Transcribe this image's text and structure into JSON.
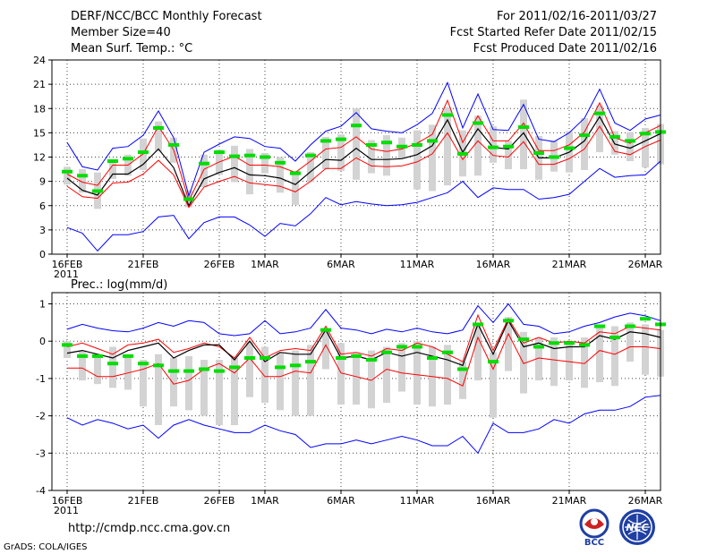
{
  "header": {
    "title": "DERF/NCC/BCC Monthly Forecast",
    "member_size": "Member Size=40",
    "variable": "Mean Surf. Temp.: °C",
    "period": "For 2011/02/16-2011/03/27",
    "fcst_started": "Fcst Started Refer Date 2011/02/15",
    "fcst_produced": "Fcst Produced Date 2011/02/16"
  },
  "footer": {
    "url": "http://cmdp.ncc.cma.gov.cn",
    "credit": "GrADS: COLA/IGES",
    "logo_text": "BCC",
    "logo2_text": "NCC"
  },
  "colors": {
    "ensemble_range": "#0000ff",
    "spread": "#ff0000",
    "ensemble_mean": "#000000",
    "observed": "#00dd00",
    "box": "#d3d3d3",
    "grid": "#444444"
  },
  "chart_data": [
    {
      "type": "line",
      "title": "Mean Surf. Temp.: °C",
      "x_tick_labels": [
        "16FEB",
        "21FEB",
        "26FEB",
        "1MAR",
        "6MAR",
        "11MAR",
        "16MAR",
        "21MAR",
        "26MAR"
      ],
      "x_tick_days": [
        1,
        6,
        11,
        14,
        19,
        24,
        29,
        34,
        39
      ],
      "year_label": "2011",
      "ylim": [
        0,
        24
      ],
      "yticks": [
        0,
        3,
        6,
        9,
        12,
        15,
        18,
        21,
        24
      ],
      "day_range": [
        0,
        40
      ],
      "series": [
        {
          "name": "max",
          "values": [
            13.8,
            10.8,
            10.4,
            13.1,
            13.3,
            14.7,
            17.7,
            14.4,
            7.2,
            12.6,
            13.6,
            14.5,
            14.3,
            13.3,
            13.1,
            11.5,
            13.5,
            15.2,
            15.8,
            17.5,
            15.5,
            15.2,
            15.0,
            16.0,
            17.4,
            21.2,
            15.6,
            19.8,
            15.4,
            15.3,
            18.5,
            14.2,
            13.9,
            15.0,
            16.8,
            20.4,
            16.2,
            15.3,
            16.7,
            17.2
          ]
        },
        {
          "name": "spread_upper",
          "values": [
            9.9,
            8.9,
            8.5,
            11.0,
            11.0,
            12.4,
            15.8,
            12.9,
            6.6,
            10.5,
            11.4,
            12.1,
            11.0,
            11.0,
            10.8,
            10.1,
            11.5,
            13.0,
            13.2,
            14.5,
            13.0,
            12.7,
            13.0,
            13.7,
            14.8,
            19.0,
            13.8,
            17.1,
            14.0,
            14.0,
            16.2,
            12.8,
            12.8,
            13.5,
            15.1,
            18.7,
            14.4,
            13.7,
            15.0,
            15.9
          ]
        },
        {
          "name": "mean",
          "values": [
            9.4,
            7.9,
            7.3,
            9.9,
            9.9,
            11.1,
            13.0,
            10.7,
            6.0,
            9.3,
            10.1,
            10.7,
            9.8,
            9.7,
            9.4,
            8.6,
            10.2,
            11.7,
            11.6,
            13.1,
            11.7,
            11.7,
            11.8,
            12.3,
            13.4,
            16.6,
            12.6,
            15.5,
            13.2,
            13.0,
            15.0,
            11.9,
            11.9,
            12.6,
            14.0,
            17.0,
            13.6,
            13.1,
            14.0,
            14.9
          ]
        },
        {
          "name": "spread_lower",
          "values": [
            8.4,
            7.1,
            6.9,
            8.8,
            8.9,
            9.9,
            11.6,
            9.8,
            5.8,
            8.3,
            9.0,
            9.6,
            8.8,
            8.6,
            8.4,
            7.7,
            9.0,
            10.6,
            10.6,
            11.9,
            10.9,
            10.8,
            10.9,
            11.4,
            12.4,
            15.0,
            11.7,
            14.0,
            12.2,
            12.0,
            13.9,
            11.1,
            11.1,
            11.8,
            13.0,
            15.8,
            12.7,
            12.3,
            13.3,
            14.1
          ]
        },
        {
          "name": "min",
          "values": [
            3.3,
            2.6,
            0.4,
            2.4,
            2.4,
            2.8,
            4.6,
            4.8,
            1.9,
            3.9,
            4.6,
            4.6,
            3.6,
            2.2,
            3.8,
            3.5,
            5.0,
            7.0,
            6.1,
            6.5,
            6.2,
            6.0,
            6.1,
            6.4,
            7.0,
            7.6,
            9.0,
            7.0,
            8.2,
            8.0,
            8.0,
            6.8,
            7.0,
            7.4,
            9.0,
            10.6,
            9.5,
            9.7,
            9.8,
            11.5
          ]
        },
        {
          "name": "observed",
          "values": [
            10.2,
            9.7,
            7.8,
            11.5,
            11.8,
            12.6,
            15.6,
            13.5,
            6.8,
            11.2,
            12.6,
            12.1,
            12.2,
            12.0,
            11.3,
            10.0,
            12.2,
            14.0,
            14.2,
            15.9,
            13.5,
            13.8,
            13.3,
            13.5,
            14.0,
            17.2,
            12.4,
            16.2,
            13.2,
            13.3,
            15.7,
            12.5,
            12.0,
            13.1,
            14.7,
            17.4,
            14.5,
            14.0,
            14.9,
            15.1
          ]
        }
      ],
      "box_range": {
        "low": [
          8.6,
          7.6,
          5.6,
          9.3,
          9.7,
          10.4,
          12.7,
          11.3,
          5.8,
          8.3,
          9.8,
          8.9,
          7.4,
          10.0,
          7.6,
          6.1,
          8.9,
          10.5,
          10.3,
          9.2,
          10.0,
          9.7,
          11.8,
          8.0,
          7.8,
          8.5,
          9.6,
          9.7,
          11.3,
          10.5,
          10.5,
          9.2,
          10.2,
          10.1,
          10.4,
          12.6,
          12.3,
          11.5,
          10.7,
          11.1
        ],
        "high": [
          10.8,
          10.5,
          10.1,
          11.3,
          12.3,
          14.3,
          16.4,
          14.4,
          7.9,
          12.3,
          12.9,
          13.4,
          13.0,
          12.5,
          12.0,
          10.3,
          12.6,
          14.5,
          14.8,
          18.0,
          14.1,
          14.7,
          14.4,
          15.3,
          16.0,
          18.2,
          15.3,
          17.1,
          15.8,
          14.0,
          19.1,
          14.6,
          14.0,
          15.2,
          16.8,
          18.4,
          15.2,
          15.1,
          15.6,
          16.1
        ]
      }
    },
    {
      "type": "line",
      "title": "Prec.: log(mm/d)",
      "x_tick_labels": [
        "16FEB",
        "21FEB",
        "26FEB",
        "1MAR",
        "6MAR",
        "11MAR",
        "16MAR",
        "21MAR",
        "26MAR"
      ],
      "x_tick_days": [
        1,
        6,
        11,
        14,
        19,
        24,
        29,
        34,
        39
      ],
      "year_label": "2011",
      "ylim": [
        -4,
        1.3
      ],
      "yticks": [
        -4,
        -3,
        -2,
        -1,
        0,
        1
      ],
      "day_range": [
        0,
        40
      ],
      "series": [
        {
          "name": "max",
          "values": [
            0.32,
            0.45,
            0.35,
            0.28,
            0.25,
            0.35,
            0.5,
            0.4,
            0.55,
            0.5,
            0.2,
            0.15,
            0.2,
            0.55,
            0.2,
            0.25,
            0.35,
            0.85,
            0.35,
            0.3,
            0.2,
            0.32,
            0.25,
            0.35,
            0.25,
            0.2,
            0.3,
            0.95,
            0.5,
            1.0,
            0.45,
            0.4,
            0.2,
            0.25,
            0.4,
            0.5,
            0.65,
            0.75,
            0.68,
            0.55
          ]
        },
        {
          "name": "spread_upper",
          "values": [
            -0.15,
            -0.05,
            -0.2,
            -0.35,
            -0.1,
            -0.05,
            0.05,
            -0.3,
            -0.2,
            -0.05,
            -0.15,
            -0.45,
            0.1,
            -0.45,
            -0.25,
            -0.2,
            -0.25,
            0.4,
            -0.35,
            -0.3,
            -0.4,
            -0.2,
            -0.25,
            -0.05,
            -0.15,
            -0.35,
            -0.55,
            0.7,
            -0.25,
            0.6,
            -0.05,
            0.1,
            -0.05,
            0.0,
            -0.05,
            0.25,
            0.2,
            0.4,
            0.35,
            0.3
          ]
        },
        {
          "name": "mean",
          "values": [
            -0.32,
            -0.25,
            -0.35,
            -0.45,
            -0.25,
            -0.15,
            -0.05,
            -0.45,
            -0.25,
            -0.1,
            -0.1,
            -0.5,
            0.0,
            -0.55,
            -0.3,
            -0.35,
            -0.35,
            0.3,
            -0.45,
            -0.4,
            -0.5,
            -0.3,
            -0.4,
            -0.3,
            -0.4,
            -0.5,
            -0.65,
            0.45,
            -0.35,
            0.55,
            -0.15,
            -0.05,
            -0.2,
            -0.15,
            -0.15,
            0.15,
            0.05,
            0.25,
            0.2,
            0.1
          ]
        },
        {
          "name": "spread_lower",
          "values": [
            -0.72,
            -0.72,
            -0.95,
            -0.95,
            -0.85,
            -0.75,
            -0.6,
            -1.15,
            -1.05,
            -0.75,
            -0.6,
            -0.85,
            -0.45,
            -0.95,
            -0.95,
            -0.8,
            -0.85,
            -0.1,
            -0.85,
            -0.95,
            -1.05,
            -0.75,
            -0.85,
            -0.9,
            -0.95,
            -1.0,
            -1.2,
            0.1,
            -0.75,
            0.2,
            -0.6,
            -0.45,
            -0.5,
            -0.55,
            -0.6,
            -0.25,
            -0.35,
            -0.15,
            -0.15,
            -0.2
          ]
        },
        {
          "name": "min",
          "values": [
            -2.05,
            -2.25,
            -2.1,
            -2.2,
            -2.35,
            -2.25,
            -2.6,
            -2.25,
            -2.1,
            -2.25,
            -2.35,
            -2.45,
            -2.45,
            -2.25,
            -2.4,
            -2.5,
            -2.85,
            -2.75,
            -2.75,
            -2.65,
            -2.75,
            -2.65,
            -2.55,
            -2.65,
            -2.8,
            -2.8,
            -2.55,
            -3.0,
            -2.2,
            -2.45,
            -2.45,
            -2.35,
            -2.1,
            -2.2,
            -1.95,
            -1.85,
            -1.85,
            -1.75,
            -1.5,
            -1.45
          ]
        },
        {
          "name": "observed",
          "values": [
            -0.1,
            -0.4,
            -0.4,
            -0.6,
            -0.4,
            -0.6,
            -0.65,
            -0.8,
            -0.8,
            -0.75,
            -0.8,
            -0.7,
            -0.45,
            -0.45,
            -0.7,
            -0.65,
            -0.55,
            0.3,
            -0.45,
            -0.4,
            -0.5,
            -0.3,
            -0.15,
            -0.15,
            -0.45,
            -0.3,
            -0.75,
            0.45,
            -0.55,
            0.55,
            0.05,
            -0.15,
            -0.05,
            -0.05,
            -0.1,
            0.4,
            0.1,
            0.4,
            0.6,
            0.45
          ]
        }
      ],
      "box_range": {
        "low": [
          -0.45,
          -1.05,
          -1.15,
          -1.25,
          -1.3,
          -1.75,
          -2.25,
          -1.75,
          -1.85,
          -2.0,
          -2.25,
          -2.25,
          -1.5,
          -1.65,
          -1.85,
          -2.0,
          -2.0,
          -0.75,
          -1.7,
          -1.7,
          -1.8,
          -1.65,
          -1.35,
          -1.7,
          -1.75,
          -1.7,
          -1.55,
          -1.05,
          -2.05,
          -0.8,
          -1.4,
          -1.05,
          -1.2,
          -1.05,
          -1.25,
          -1.1,
          -1.2,
          -0.55,
          -0.9,
          -0.95
        ],
        "high": [
          0.0,
          -0.25,
          -0.35,
          -0.15,
          -0.35,
          -0.5,
          -0.35,
          -0.45,
          -0.4,
          -0.5,
          -0.5,
          -0.45,
          0.0,
          -0.15,
          -0.3,
          -0.25,
          -0.1,
          0.35,
          -0.05,
          -0.3,
          -0.25,
          -0.15,
          -0.05,
          0.0,
          -0.15,
          -0.1,
          -0.55,
          0.45,
          -0.3,
          0.65,
          0.25,
          0.1,
          0.1,
          0.0,
          0.1,
          0.4,
          0.4,
          0.5,
          0.45,
          0.3
        ]
      }
    }
  ]
}
